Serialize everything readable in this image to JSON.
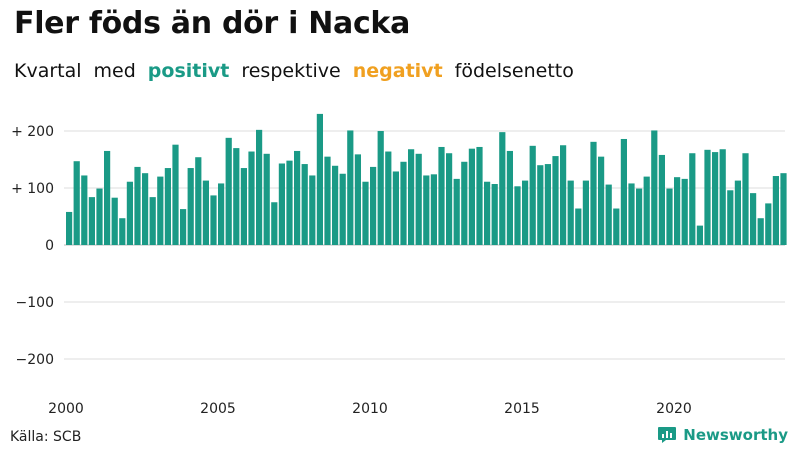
{
  "title": "Fler föds än dör i Nacka",
  "subtitle": {
    "part1": "Kvartal",
    "part2": "med",
    "positive": "positivt",
    "part3": "respektive",
    "negative": "negativt",
    "part4": "födelsenetto"
  },
  "source": "Källa: SCB",
  "brand": "Newsworthy",
  "colors": {
    "positive": "#1a9a86",
    "negative": "#f0a020",
    "grid": "#dddddd"
  },
  "chart_data": {
    "type": "bar",
    "title": "",
    "xlabel": "",
    "ylabel": "",
    "ylim": [
      -240,
      230
    ],
    "grid": true,
    "y_ticks": [
      {
        "value": 200,
        "label": "+ 200"
      },
      {
        "value": 100,
        "label": "+ 100"
      },
      {
        "value": 0,
        "label": "0"
      },
      {
        "value": -100,
        "label": "−100"
      },
      {
        "value": -200,
        "label": "−200"
      }
    ],
    "x_ticks": [
      {
        "index": 0,
        "label": "2000"
      },
      {
        "index": 20,
        "label": "2005"
      },
      {
        "index": 40,
        "label": "2010"
      },
      {
        "index": 60,
        "label": "2015"
      },
      {
        "index": 80,
        "label": "2020"
      }
    ],
    "start": "2000 Q1",
    "values": [
      58,
      147,
      122,
      84,
      99,
      165,
      83,
      47,
      111,
      137,
      126,
      84,
      120,
      135,
      176,
      63,
      135,
      154,
      113,
      87,
      108,
      188,
      170,
      135,
      164,
      202,
      160,
      75,
      143,
      148,
      165,
      142,
      122,
      230,
      155,
      139,
      125,
      201,
      159,
      111,
      137,
      200,
      164,
      129,
      146,
      168,
      160,
      122,
      124,
      172,
      161,
      116,
      146,
      169,
      172,
      111,
      107,
      198,
      165,
      103,
      113,
      174,
      140,
      142,
      156,
      175,
      113,
      64,
      113,
      181,
      155,
      106,
      64,
      186,
      108,
      99,
      120,
      201,
      158,
      99,
      119,
      116,
      161,
      34,
      167,
      163,
      168,
      96,
      113,
      161,
      91,
      47,
      73,
      121,
      126
    ]
  }
}
